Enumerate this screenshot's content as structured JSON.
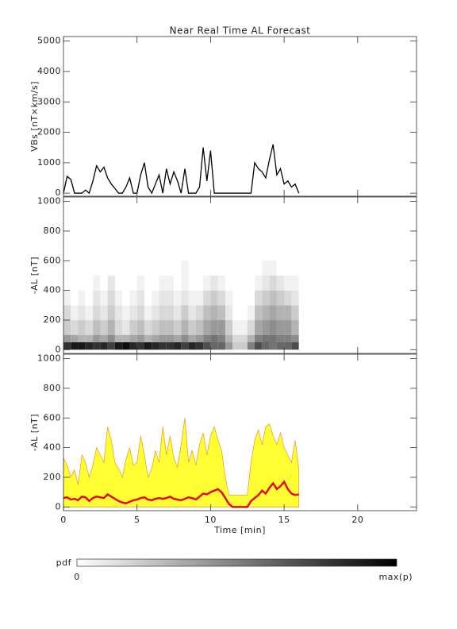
{
  "chart_data": [
    {
      "type": "line",
      "title": "Near Real Time AL Forecast",
      "ylabel": "VBs [nT×km/s]",
      "color": "#000000",
      "x": [
        0,
        0.25,
        0.5,
        0.75,
        1,
        1.25,
        1.5,
        1.75,
        2,
        2.25,
        2.5,
        2.75,
        3,
        3.25,
        3.5,
        3.75,
        4,
        4.25,
        4.5,
        4.75,
        5,
        5.25,
        5.5,
        5.75,
        6,
        6.25,
        6.5,
        6.75,
        7,
        7.25,
        7.5,
        7.75,
        8,
        8.25,
        8.5,
        8.75,
        9,
        9.25,
        9.5,
        9.75,
        10,
        10.25,
        10.5,
        10.75,
        11,
        11.25,
        11.5,
        11.75,
        12,
        12.25,
        12.5,
        12.75,
        13,
        13.25,
        13.5,
        13.75,
        14,
        14.25,
        14.5,
        14.75,
        15,
        15.25,
        15.5,
        15.75,
        16
      ],
      "values": [
        0,
        550,
        450,
        0,
        0,
        0,
        100,
        0,
        400,
        900,
        700,
        850,
        500,
        300,
        150,
        0,
        0,
        200,
        500,
        0,
        0,
        600,
        1000,
        200,
        0,
        300,
        600,
        0,
        800,
        300,
        700,
        400,
        0,
        800,
        0,
        0,
        0,
        200,
        1500,
        400,
        1400,
        0,
        0,
        0,
        0,
        0,
        0,
        0,
        0,
        0,
        0,
        0,
        1000,
        800,
        700,
        500,
        1100,
        1600,
        600,
        800,
        300,
        400,
        200,
        300,
        0
      ],
      "xlim": [
        0,
        24
      ],
      "xticks": [
        0,
        5,
        10,
        15,
        20
      ],
      "ylim": [
        -100,
        5150
      ],
      "yticks": [
        0,
        1000,
        2000,
        3000,
        4000,
        5000
      ]
    },
    {
      "type": "heatmap",
      "ylabel": "-AL [nT]",
      "x_bins": [
        0,
        0.5,
        1,
        1.5,
        2,
        2.5,
        3,
        3.5,
        4,
        4.5,
        5,
        5.5,
        6,
        6.5,
        7,
        7.5,
        8,
        8.5,
        9,
        9.5,
        10,
        10.5,
        11,
        11.5,
        12,
        12.5,
        13,
        13.5,
        14,
        14.5,
        15,
        15.5,
        16
      ],
      "y_bins": [
        0,
        50,
        100,
        200,
        300,
        400,
        500,
        600
      ],
      "values": [
        [
          0.8,
          0.4,
          0.2,
          0.15,
          0.05,
          0,
          0
        ],
        [
          0.9,
          0.35,
          0.15,
          0.05,
          0,
          0,
          0
        ],
        [
          0.9,
          0.3,
          0.2,
          0.1,
          0.05,
          0,
          0
        ],
        [
          0.85,
          0.3,
          0.15,
          0.05,
          0,
          0,
          0
        ],
        [
          0.8,
          0.4,
          0.25,
          0.15,
          0.1,
          0.05,
          0
        ],
        [
          0.85,
          0.35,
          0.2,
          0.1,
          0.05,
          0,
          0
        ],
        [
          0.75,
          0.45,
          0.3,
          0.2,
          0.15,
          0.1,
          0
        ],
        [
          0.9,
          0.3,
          0.15,
          0.1,
          0.05,
          0,
          0
        ],
        [
          0.95,
          0.3,
          0.1,
          0.05,
          0,
          0,
          0
        ],
        [
          0.85,
          0.35,
          0.2,
          0.1,
          0.05,
          0,
          0
        ],
        [
          0.8,
          0.4,
          0.25,
          0.15,
          0.1,
          0.05,
          0
        ],
        [
          0.9,
          0.3,
          0.15,
          0.05,
          0,
          0,
          0
        ],
        [
          0.85,
          0.35,
          0.2,
          0.1,
          0.05,
          0,
          0
        ],
        [
          0.8,
          0.4,
          0.25,
          0.15,
          0.1,
          0.05,
          0
        ],
        [
          0.8,
          0.4,
          0.25,
          0.15,
          0.1,
          0.05,
          0
        ],
        [
          0.85,
          0.35,
          0.2,
          0.1,
          0.05,
          0,
          0
        ],
        [
          0.75,
          0.45,
          0.3,
          0.2,
          0.1,
          0.05,
          0.05
        ],
        [
          0.85,
          0.35,
          0.2,
          0.1,
          0.05,
          0,
          0
        ],
        [
          0.8,
          0.4,
          0.25,
          0.15,
          0.05,
          0,
          0
        ],
        [
          0.7,
          0.5,
          0.35,
          0.25,
          0.15,
          0.05,
          0
        ],
        [
          0.6,
          0.55,
          0.4,
          0.3,
          0.2,
          0.1,
          0
        ],
        [
          0.6,
          0.5,
          0.4,
          0.25,
          0.15,
          0.05,
          0
        ],
        [
          0.4,
          0.3,
          0.2,
          0.1,
          0.05,
          0,
          0
        ],
        [
          0.2,
          0.15,
          0.05,
          0,
          0,
          0,
          0
        ],
        [
          0.2,
          0.15,
          0.05,
          0,
          0,
          0,
          0
        ],
        [
          0.5,
          0.3,
          0.15,
          0.05,
          0,
          0,
          0
        ],
        [
          0.7,
          0.5,
          0.35,
          0.25,
          0.15,
          0.05,
          0
        ],
        [
          0.6,
          0.55,
          0.4,
          0.3,
          0.2,
          0.1,
          0.05
        ],
        [
          0.55,
          0.55,
          0.45,
          0.35,
          0.25,
          0.15,
          0.05
        ],
        [
          0.6,
          0.5,
          0.4,
          0.3,
          0.2,
          0.1,
          0
        ],
        [
          0.6,
          0.5,
          0.4,
          0.3,
          0.15,
          0.05,
          0
        ],
        [
          0.7,
          0.45,
          0.3,
          0.2,
          0.1,
          0.05,
          0
        ]
      ],
      "xlim": [
        0,
        24
      ],
      "xticks": [
        0,
        5,
        10,
        15,
        20
      ],
      "ylim": [
        -25,
        1030
      ],
      "yticks": [
        0,
        200,
        400,
        600,
        800,
        1000
      ]
    },
    {
      "type": "band_line",
      "ylabel": "-AL [nT]",
      "xlabel": "Time [min]",
      "color": "#ee0000",
      "upper_color": "#ffff33",
      "edge_color": "#f0a030",
      "x": [
        0,
        0.25,
        0.5,
        0.75,
        1,
        1.25,
        1.5,
        1.75,
        2,
        2.25,
        2.5,
        2.75,
        3,
        3.25,
        3.5,
        3.75,
        4,
        4.25,
        4.5,
        4.75,
        5,
        5.25,
        5.5,
        5.75,
        6,
        6.25,
        6.5,
        6.75,
        7,
        7.25,
        7.5,
        7.75,
        8,
        8.25,
        8.5,
        8.75,
        9,
        9.25,
        9.5,
        9.75,
        10,
        10.25,
        10.5,
        10.75,
        11,
        11.25,
        11.5,
        11.75,
        12,
        12.25,
        12.5,
        12.75,
        13,
        13.25,
        13.5,
        13.75,
        14,
        14.25,
        14.5,
        14.75,
        15,
        15.25,
        15.5,
        15.75,
        16
      ],
      "values": [
        60,
        65,
        50,
        55,
        45,
        70,
        65,
        40,
        60,
        70,
        65,
        60,
        85,
        70,
        55,
        40,
        30,
        25,
        35,
        45,
        50,
        60,
        65,
        50,
        45,
        55,
        60,
        55,
        60,
        70,
        55,
        50,
        45,
        55,
        65,
        60,
        50,
        70,
        90,
        85,
        100,
        110,
        120,
        100,
        60,
        20,
        0,
        0,
        0,
        0,
        0,
        40,
        60,
        80,
        110,
        90,
        130,
        160,
        120,
        140,
        170,
        120,
        90,
        80,
        85
      ],
      "upper": [
        330,
        280,
        200,
        250,
        150,
        350,
        300,
        200,
        280,
        400,
        350,
        300,
        540,
        450,
        300,
        260,
        200,
        320,
        400,
        280,
        300,
        480,
        350,
        200,
        260,
        380,
        300,
        540,
        350,
        480,
        330,
        270,
        420,
        600,
        300,
        380,
        280,
        420,
        500,
        350,
        480,
        540,
        450,
        380,
        200,
        80,
        80,
        80,
        80,
        80,
        80,
        300,
        450,
        520,
        420,
        540,
        560,
        480,
        420,
        500,
        400,
        350,
        300,
        450,
        250
      ],
      "xlim": [
        0,
        24
      ],
      "xticks": [
        0,
        5,
        10,
        15,
        20
      ],
      "ylim": [
        -25,
        1030
      ],
      "yticks": [
        0,
        200,
        400,
        600,
        800,
        1000
      ]
    }
  ],
  "colorbar": {
    "label": "pdf",
    "min_label": "0",
    "max_label": "max(p)"
  }
}
